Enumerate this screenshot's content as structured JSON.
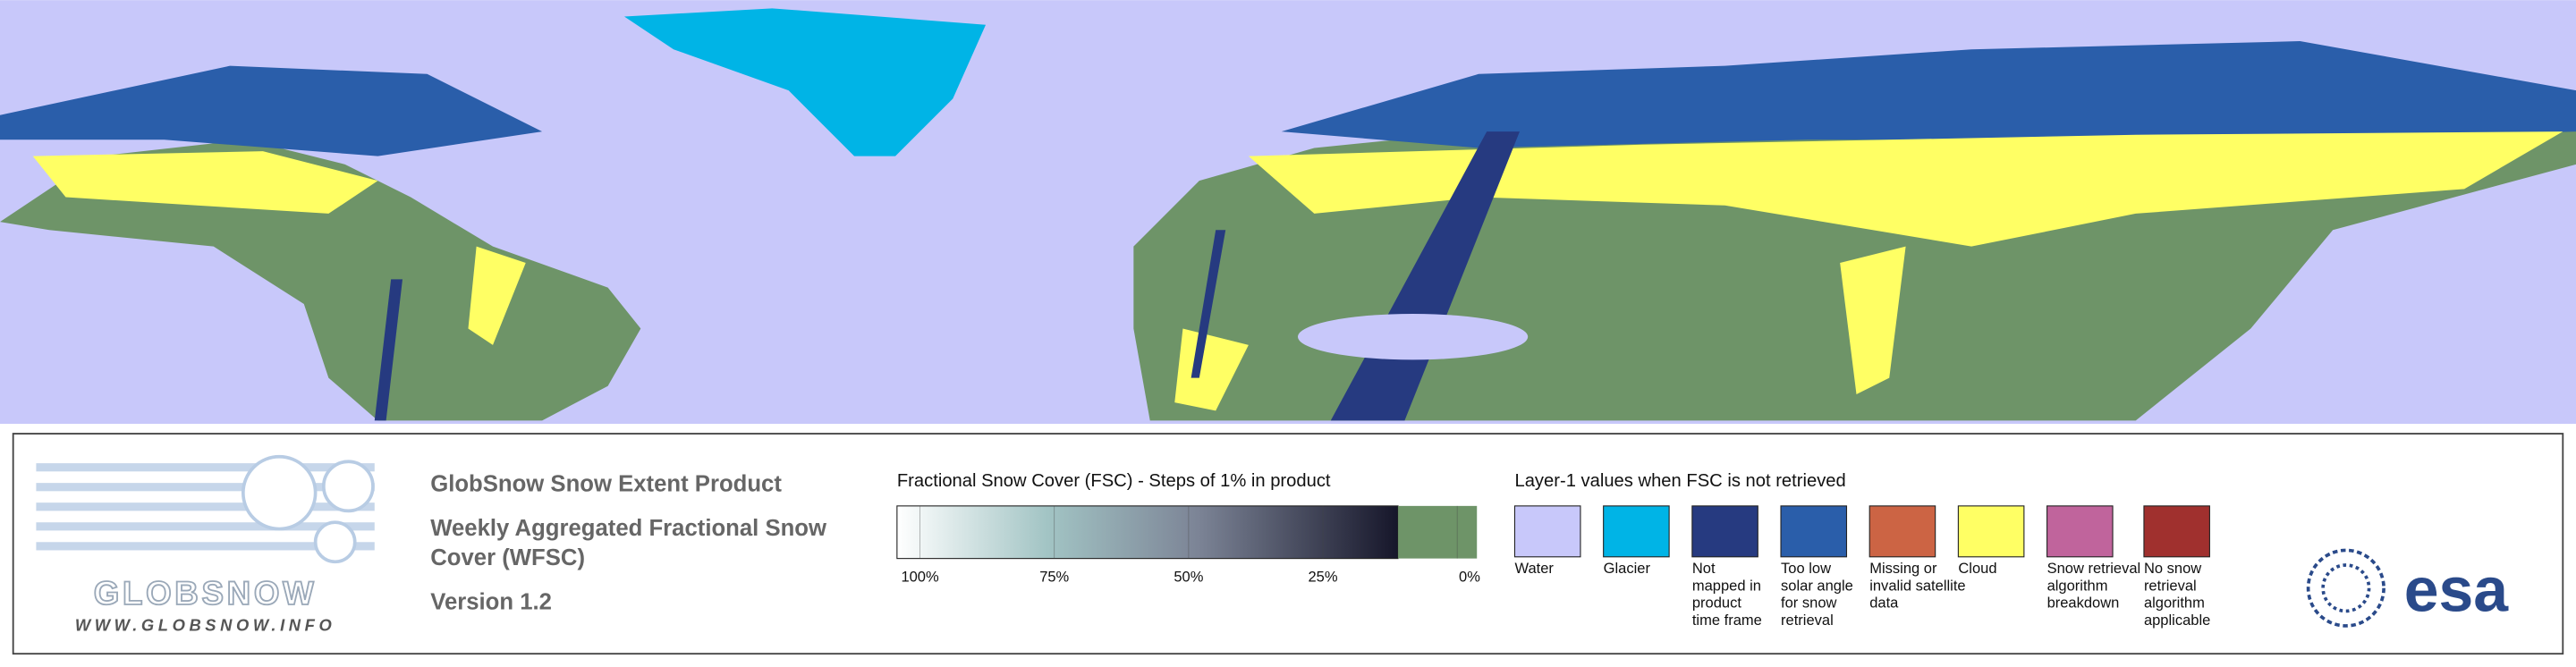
{
  "logo": {
    "name": "GLOBSNOW",
    "url": "WWW.GLOBSNOW.INFO"
  },
  "header": {
    "title": "GlobSnow Snow Extent Product",
    "subtitle_lines": [
      "Weekly Aggregated Fractional Snow",
      "Cover (WFSC)"
    ],
    "version": "Version 1.2"
  },
  "fsc_scale": {
    "title": "Fractional Snow Cover (FSC) - Steps of 1% in product",
    "ticks": [
      {
        "value": 100,
        "label": "100%"
      },
      {
        "value": 75,
        "label": "75%"
      },
      {
        "value": 50,
        "label": "50%"
      },
      {
        "value": 25,
        "label": "25%"
      },
      {
        "value": 0,
        "label": "0%"
      }
    ]
  },
  "layer1": {
    "title": "Layer-1 values when FSC is not retrieved",
    "items": [
      {
        "color": "#c8c8fa",
        "label": [
          "Water"
        ]
      },
      {
        "color": "#00b4e6",
        "label": [
          "Glacier"
        ]
      },
      {
        "color": "#263a80",
        "label": [
          "Not",
          "mapped in",
          "product",
          "time frame"
        ]
      },
      {
        "color": "#2a5eaa",
        "label": [
          "Too low",
          "solar angle",
          "for snow",
          "retrieval"
        ]
      },
      {
        "color": "#cc6444",
        "label": [
          "Missing or",
          "invalid satellite",
          "data"
        ]
      },
      {
        "color": "#ffff64",
        "label": [
          "Cloud"
        ]
      },
      {
        "color": "#c0649c",
        "label": [
          "Snow retrieval",
          "algorithm",
          "breakdown"
        ]
      },
      {
        "color": "#a0302e",
        "label": [
          "No snow",
          "retrieval",
          "algorithm",
          "applicable"
        ]
      }
    ]
  },
  "agency": "esa"
}
